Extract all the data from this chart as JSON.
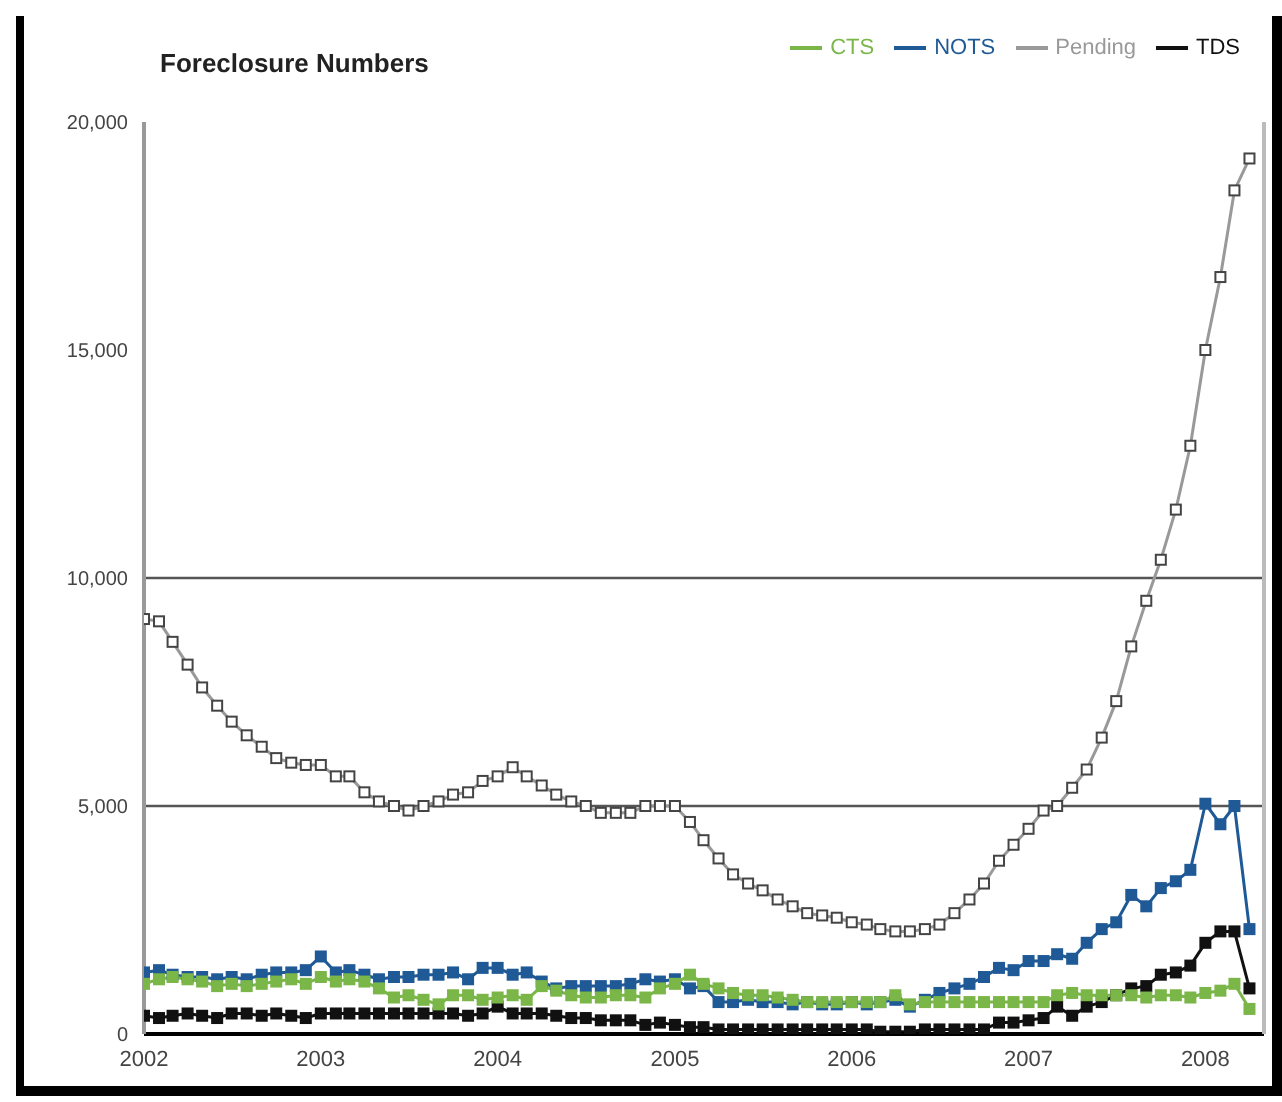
{
  "chart_data": {
    "type": "line",
    "title": "Foreclosure Numbers",
    "legend": "top right",
    "marker": "square",
    "line_style": "solid",
    "grid": false,
    "x": [
      "2002-01",
      "2002-02",
      "2002-03",
      "2002-04",
      "2002-05",
      "2002-06",
      "2002-07",
      "2002-08",
      "2002-09",
      "2002-10",
      "2002-11",
      "2002-12",
      "2003-01",
      "2003-02",
      "2003-03",
      "2003-04",
      "2003-05",
      "2003-06",
      "2003-07",
      "2003-08",
      "2003-09",
      "2003-10",
      "2003-11",
      "2003-12",
      "2004-01",
      "2004-02",
      "2004-03",
      "2004-04",
      "2004-05",
      "2004-06",
      "2004-07",
      "2004-08",
      "2004-09",
      "2004-10",
      "2004-11",
      "2004-12",
      "2005-01",
      "2005-02",
      "2005-03",
      "2005-04",
      "2005-05",
      "2005-06",
      "2005-07",
      "2005-08",
      "2005-09",
      "2005-10",
      "2005-11",
      "2005-12",
      "2006-01",
      "2006-02",
      "2006-03",
      "2006-04",
      "2006-05",
      "2006-06",
      "2006-07",
      "2006-08",
      "2006-09",
      "2006-10",
      "2006-11",
      "2006-12",
      "2007-01",
      "2007-02",
      "2007-03",
      "2007-04",
      "2007-05",
      "2007-06",
      "2007-07",
      "2007-08",
      "2007-09",
      "2007-10",
      "2007-11",
      "2007-12",
      "2008-01",
      "2008-02",
      "2008-03",
      "2008-04"
    ],
    "xlim": [
      "2002-01",
      "2008-05"
    ],
    "xticks": [
      "2002",
      "2003",
      "2004",
      "2005",
      "2006",
      "2007",
      "2008"
    ],
    "ylim": [
      0,
      20000
    ],
    "yticks": [
      0,
      {
        "value": 5000,
        "label": "5,000"
      },
      {
        "value": 10000,
        "label": "10,000"
      },
      {
        "value": 15000,
        "label": "15,000"
      },
      {
        "value": 20000,
        "label": "20,000"
      }
    ],
    "ref_lines": [
      {
        "axis": "y",
        "value": 5000,
        "color": "#555555"
      },
      {
        "axis": "y",
        "value": 10000,
        "color": "#555555"
      }
    ],
    "series": [
      {
        "name": "NOTS",
        "color": "#1f5a96",
        "values": [
          1350,
          1400,
          1300,
          1250,
          1250,
          1200,
          1250,
          1200,
          1300,
          1350,
          1350,
          1400,
          1700,
          1350,
          1400,
          1300,
          1200,
          1250,
          1250,
          1300,
          1300,
          1350,
          1200,
          1450,
          1450,
          1300,
          1350,
          1150,
          1000,
          1050,
          1050,
          1050,
          1050,
          1100,
          1200,
          1150,
          1200,
          1000,
          1050,
          700,
          700,
          750,
          700,
          700,
          650,
          700,
          650,
          650,
          700,
          650,
          700,
          750,
          600,
          750,
          900,
          1000,
          1100,
          1250,
          1450,
          1400,
          1600,
          1600,
          1750,
          1650,
          2000,
          2300,
          2450,
          3050,
          2800,
          3200,
          3350,
          3600,
          5050,
          4600,
          5000,
          2300
        ]
      },
      {
        "name": "TDS",
        "color": "#111111",
        "values": [
          400,
          350,
          400,
          450,
          400,
          350,
          450,
          450,
          400,
          450,
          400,
          350,
          450,
          450,
          450,
          450,
          450,
          450,
          450,
          450,
          450,
          450,
          400,
          450,
          600,
          450,
          450,
          450,
          400,
          350,
          350,
          300,
          300,
          300,
          200,
          250,
          200,
          150,
          150,
          100,
          100,
          100,
          100,
          100,
          100,
          100,
          100,
          100,
          100,
          100,
          50,
          50,
          50,
          100,
          100,
          100,
          100,
          100,
          250,
          250,
          300,
          350,
          600,
          400,
          600,
          700,
          850,
          1000,
          1050,
          1300,
          1350,
          1500,
          2000,
          2250,
          2250,
          1000
        ]
      },
      {
        "name": "CTS",
        "color": "#7ab648",
        "values": [
          1100,
          1200,
          1250,
          1200,
          1150,
          1050,
          1100,
          1050,
          1100,
          1150,
          1200,
          1100,
          1250,
          1150,
          1200,
          1150,
          1000,
          800,
          850,
          750,
          650,
          850,
          850,
          750,
          800,
          850,
          750,
          1050,
          950,
          850,
          800,
          800,
          850,
          850,
          800,
          1000,
          1100,
          1300,
          1100,
          1000,
          900,
          850,
          850,
          800,
          750,
          700,
          700,
          700,
          700,
          700,
          700,
          850,
          650,
          700,
          700,
          700,
          700,
          700,
          700,
          700,
          700,
          700,
          850,
          900,
          850,
          850,
          850,
          850,
          800,
          850,
          850,
          800,
          900,
          950,
          1100,
          550
        ]
      },
      {
        "name": "Pending",
        "color": "#999999",
        "values": [
          9100,
          9050,
          8600,
          8100,
          7600,
          7200,
          6850,
          6550,
          6300,
          6050,
          5950,
          5900,
          5900,
          5650,
          5650,
          5300,
          5100,
          5000,
          4900,
          5000,
          5100,
          5250,
          5300,
          5550,
          5650,
          5850,
          5650,
          5450,
          5250,
          5100,
          5000,
          4850,
          4850,
          4850,
          5000,
          5000,
          5000,
          4650,
          4250,
          3850,
          3500,
          3300,
          3150,
          2950,
          2800,
          2650,
          2600,
          2550,
          2450,
          2400,
          2300,
          2250,
          2250,
          2300,
          2400,
          2650,
          2950,
          3300,
          3800,
          4150,
          4500,
          4900,
          5000,
          5400,
          5800,
          6500,
          7300,
          8500,
          9500,
          10400,
          11500,
          12900,
          15000,
          16600,
          18500,
          19200
        ]
      }
    ]
  }
}
